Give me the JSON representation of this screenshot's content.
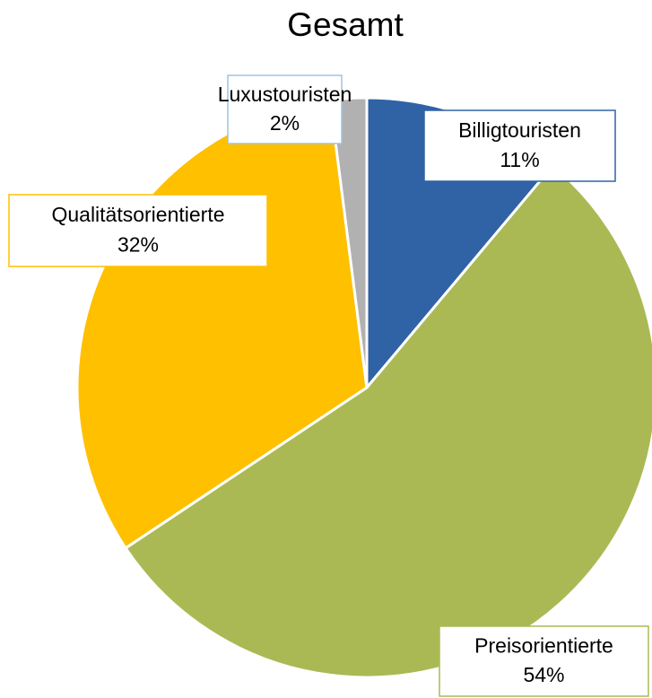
{
  "chart_data": {
    "type": "pie",
    "title": "Gesamt",
    "categories": [
      "Billigtouristen",
      "Preisorientierte",
      "Qualitätsorientierte",
      "Luxustouristen"
    ],
    "values": [
      11,
      54,
      32,
      2
    ],
    "value_labels": [
      "11%",
      "54%",
      "32%",
      "2%"
    ],
    "colors": [
      "#3062a6",
      "#abb955",
      "#ffc000",
      "#b1b1b1"
    ]
  }
}
